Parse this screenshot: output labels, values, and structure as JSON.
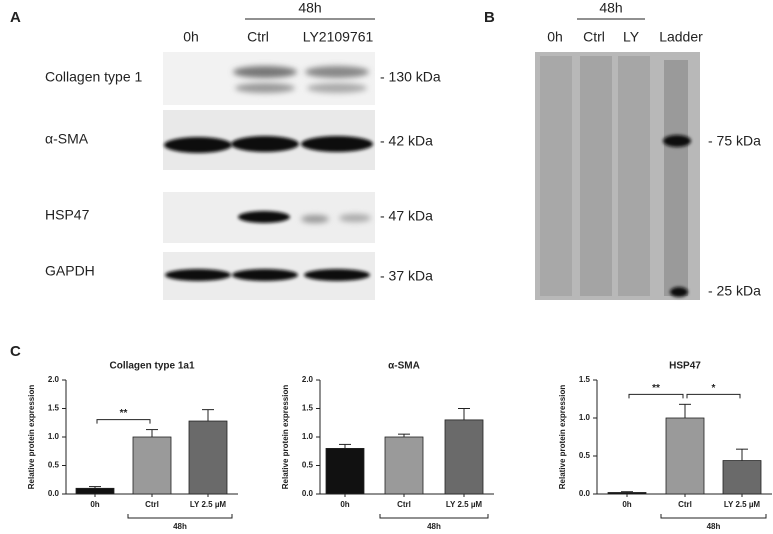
{
  "panel_labels": [
    "A",
    "B",
    "C"
  ],
  "blot": {
    "group_label": "48h",
    "lanes": [
      "0h",
      "Ctrl",
      "LY2109761"
    ],
    "rows": [
      {
        "label": "Collagen type 1",
        "size": "- 130 kDa"
      },
      {
        "label": "α-SMA",
        "size": "- 42 kDa"
      },
      {
        "label": "HSP47",
        "size": "- 47 kDa"
      },
      {
        "label": "GAPDH",
        "size": "- 37 kDa"
      }
    ]
  },
  "gel": {
    "group_label": "48h",
    "lanes": [
      "0h",
      "Ctrl",
      "LY",
      "Ladder"
    ],
    "markers": [
      "- 75 kDa",
      "- 25 kDa"
    ]
  },
  "chart_data": [
    {
      "type": "bar",
      "title": "Collagen type 1a1",
      "ylabel": "Relative protein expression",
      "categories": [
        "0h",
        "Ctrl",
        "LY 2.5 µM"
      ],
      "values": [
        0.1,
        1.0,
        1.28
      ],
      "errors": [
        0.03,
        0.13,
        0.2
      ],
      "colors": [
        "#111111",
        "#9a9a9a",
        "#6a6a6a"
      ],
      "ylim": [
        0,
        2
      ],
      "yticks": [
        {
          "value": 0,
          "label": "0.0"
        },
        {
          "value": 0.5,
          "label": "0.5"
        },
        {
          "value": 1,
          "label": "1.0"
        },
        {
          "value": 1.5,
          "label": "1.5"
        },
        {
          "value": 2,
          "label": "2.0"
        }
      ],
      "annotations": [
        {
          "text": "**",
          "between": [
            0,
            1
          ]
        }
      ],
      "group_label": "48h"
    },
    {
      "type": "bar",
      "title": "α-SMA",
      "ylabel": "Relative protein expression",
      "categories": [
        "0h",
        "Ctrl",
        "LY 2.5 µM"
      ],
      "values": [
        0.8,
        1.0,
        1.3
      ],
      "errors": [
        0.07,
        0.05,
        0.2
      ],
      "colors": [
        "#111111",
        "#9a9a9a",
        "#6a6a6a"
      ],
      "ylim": [
        0,
        2
      ],
      "yticks": [
        {
          "value": 0,
          "label": "0.0"
        },
        {
          "value": 0.5,
          "label": "0.5"
        },
        {
          "value": 1,
          "label": "1.0"
        },
        {
          "value": 1.5,
          "label": "1.5"
        },
        {
          "value": 2,
          "label": "2.0"
        }
      ],
      "annotations": [],
      "group_label": "48h"
    },
    {
      "type": "bar",
      "title": "HSP47",
      "ylabel": "Relative protein expression",
      "categories": [
        "0h",
        "Ctrl",
        "LY 2.5 µM"
      ],
      "values": [
        0.02,
        1.0,
        0.44
      ],
      "errors": [
        0.01,
        0.18,
        0.15
      ],
      "colors": [
        "#111111",
        "#9a9a9a",
        "#6a6a6a"
      ],
      "ylim": [
        0,
        1.5
      ],
      "yticks": [
        {
          "value": 0,
          "label": "0.0"
        },
        {
          "value": 0.5,
          "label": "0.5"
        },
        {
          "value": 1,
          "label": "1.0"
        },
        {
          "value": 1.5,
          "label": "1.5"
        }
      ],
      "annotations": [
        {
          "text": "**",
          "between": [
            0,
            1
          ]
        },
        {
          "text": "*",
          "between": [
            1,
            2
          ]
        }
      ],
      "group_label": "48h"
    }
  ]
}
